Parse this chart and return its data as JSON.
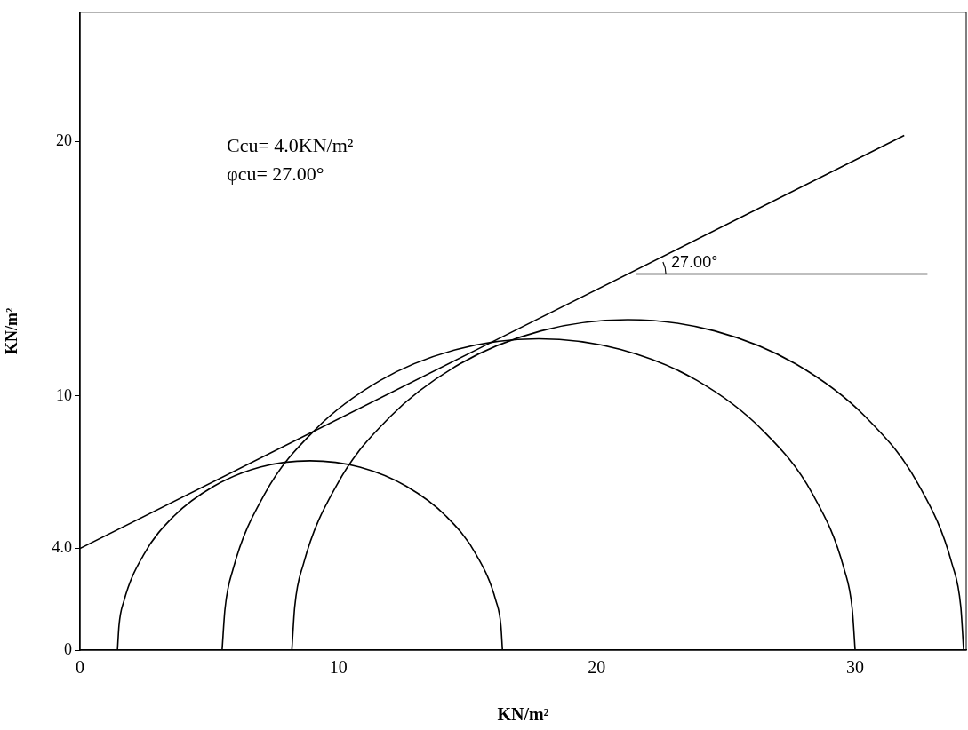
{
  "chart_data": {
    "type": "line",
    "xlabel": "KN/m²",
    "ylabel": "KN/m²",
    "xlim": [
      0,
      34.3
    ],
    "ylim": [
      0,
      25.1
    ],
    "xticks": [
      0,
      10,
      20,
      30
    ],
    "yticks": [
      0,
      {
        "value": 4,
        "label": "4.0"
      },
      10,
      20
    ],
    "grid": false,
    "legend": false,
    "marker": "none",
    "line_style": "solid",
    "annotations": [
      "Ccu= 4.0KN/m²",
      "φcu= 27.00°",
      {
        "text": "27.00°",
        "x": 22.4,
        "y": 14.8
      }
    ],
    "series": [
      {
        "color": "#000000",
        "x": [
          1.45,
          1.51,
          1.7,
          2.45,
          3.63,
          5.18,
          6.97,
          8.9,
          10.83,
          12.63,
          14.17,
          15.35,
          16.1,
          16.29,
          16.35
        ],
        "values": [
          0,
          0.97,
          1.93,
          3.73,
          5.27,
          6.45,
          7.2,
          7.45,
          7.2,
          6.45,
          5.27,
          3.73,
          1.93,
          0.97,
          0
        ]
      },
      {
        "color": "#000000",
        "x": [
          5.5,
          5.61,
          5.92,
          7.14,
          9.09,
          11.62,
          14.58,
          17.75,
          20.92,
          23.88,
          26.41,
          28.36,
          29.58,
          29.89,
          30.0
        ],
        "values": [
          0,
          1.6,
          3.17,
          6.13,
          8.66,
          10.61,
          11.83,
          12.25,
          11.83,
          10.61,
          8.66,
          6.13,
          3.17,
          1.6,
          0
        ]
      },
      {
        "color": "#000000",
        "x": [
          8.2,
          8.31,
          8.64,
          9.94,
          12.01,
          14.7,
          17.84,
          21.2,
          24.56,
          27.7,
          30.39,
          32.46,
          33.76,
          34.09,
          34.2
        ],
        "values": [
          0,
          1.7,
          3.36,
          6.5,
          9.19,
          11.26,
          12.56,
          13,
          12.56,
          11.26,
          9.19,
          6.5,
          3.36,
          1.7,
          0
        ]
      },
      {
        "color": "#000000",
        "x": [
          0,
          31.9
        ],
        "values": [
          4,
          20.25
        ]
      },
      {
        "color": "#000000",
        "x": [
          21.5,
          32.8
        ],
        "values": [
          14.8,
          14.8
        ]
      }
    ]
  }
}
